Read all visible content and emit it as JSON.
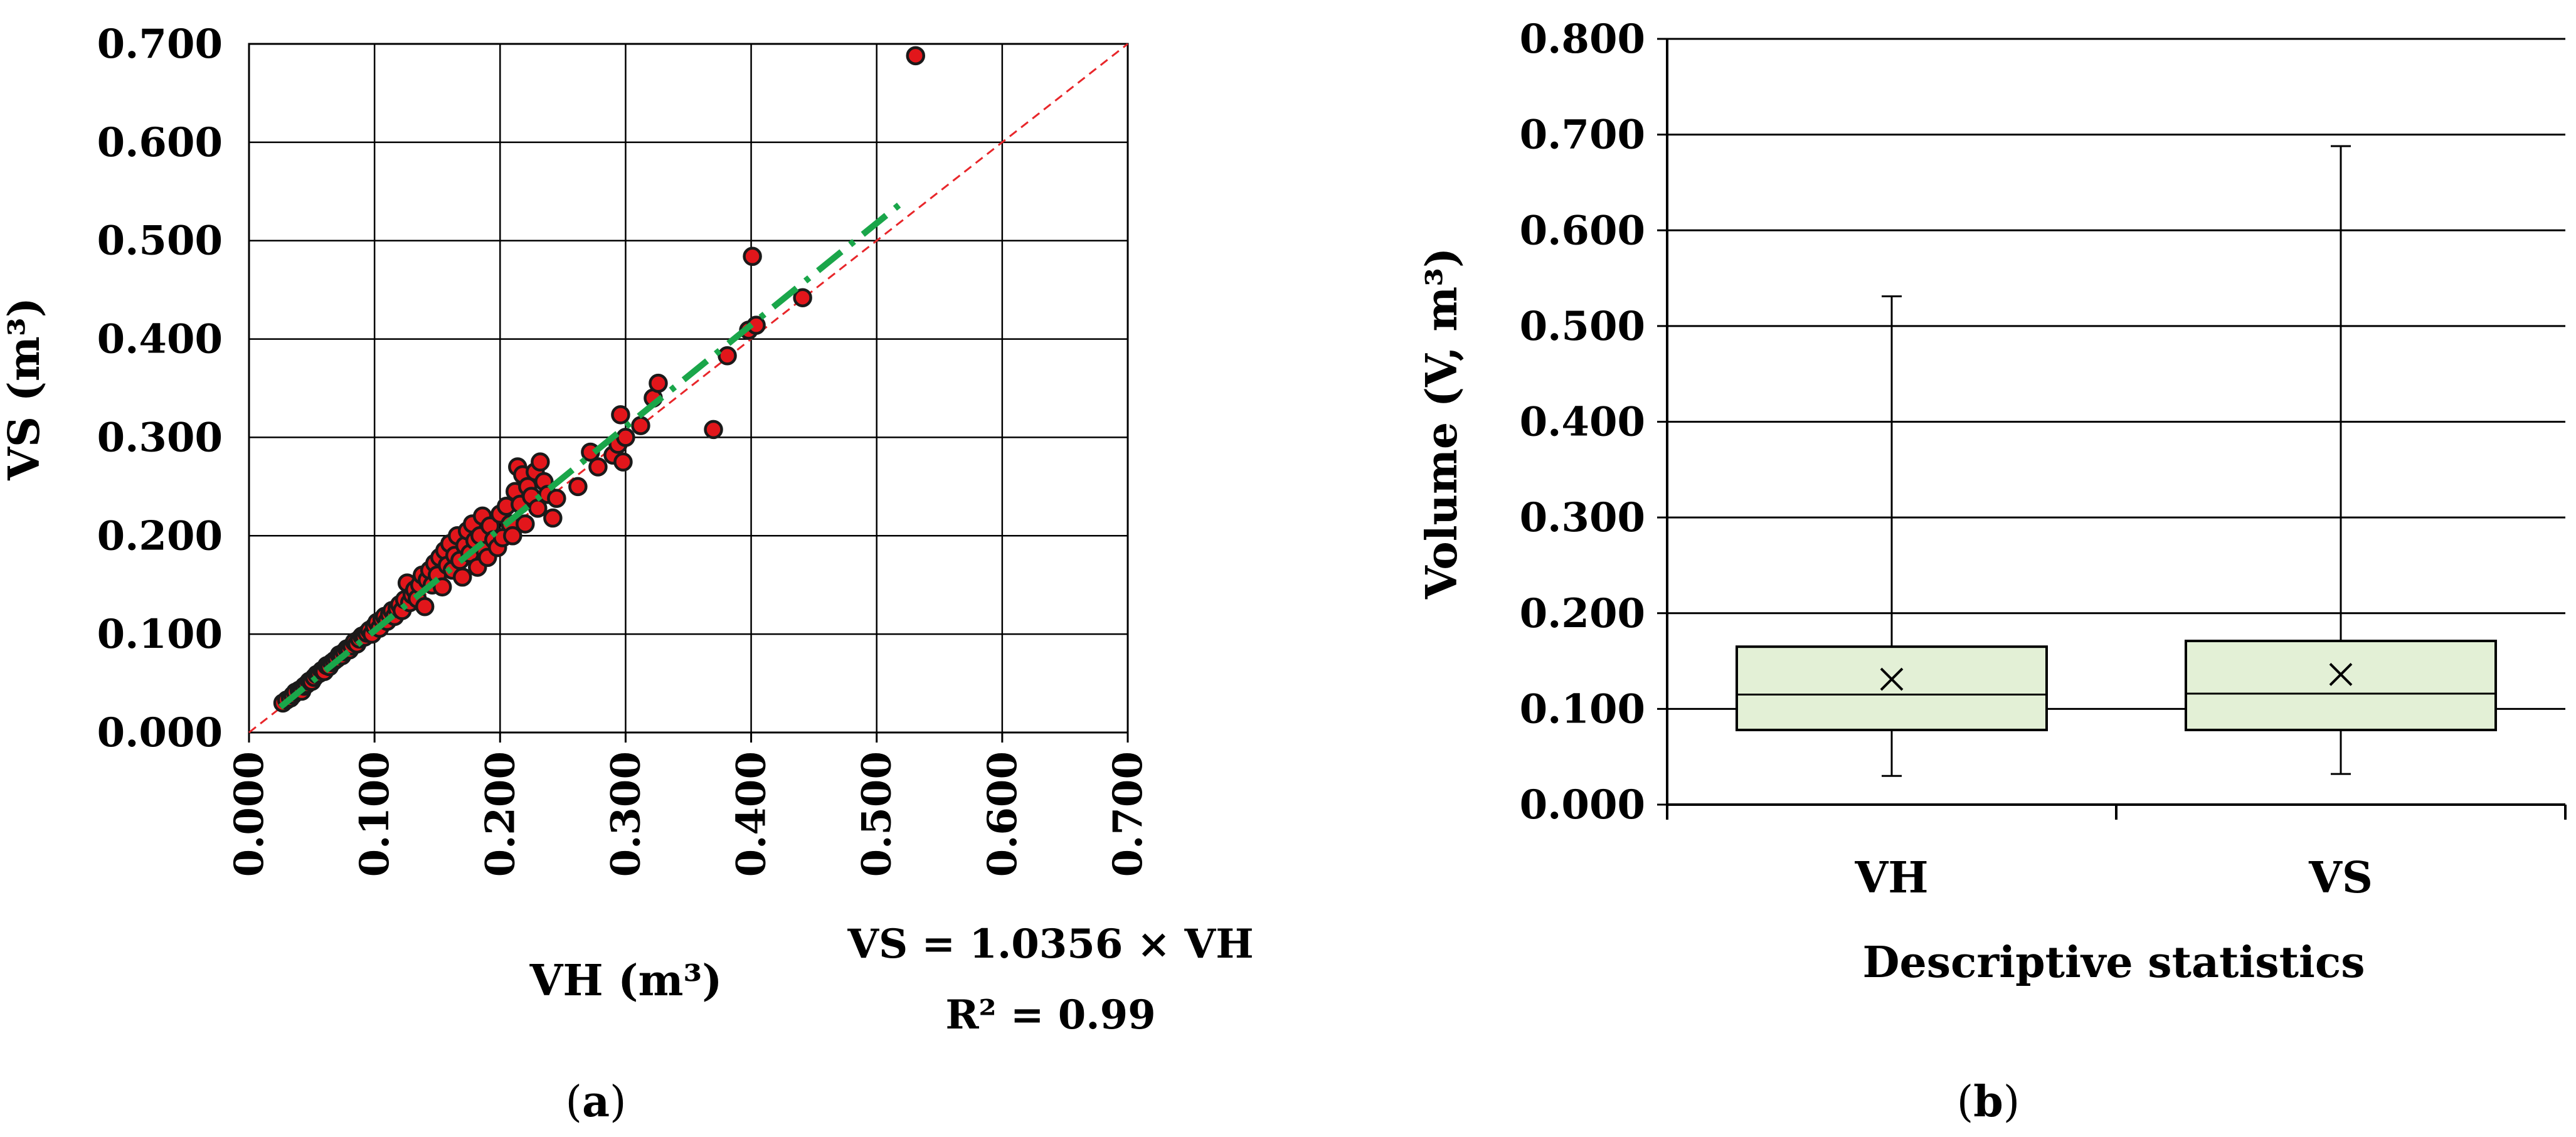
{
  "chart_data": [
    {
      "panel": "(a)",
      "type": "scatter",
      "xlabel": "VH (m³)",
      "ylabel": "VS (m³)",
      "xlim": [
        0.0,
        0.7
      ],
      "ylim": [
        0.0,
        0.7
      ],
      "x_ticks": [
        "0.000",
        "0.100",
        "0.200",
        "0.300",
        "0.400",
        "0.500",
        "0.600",
        "0.700"
      ],
      "y_ticks": [
        "0.000",
        "0.100",
        "0.200",
        "0.300",
        "0.400",
        "0.500",
        "0.600",
        "0.700"
      ],
      "grid": true,
      "equation": "VS = 1.0356 × VH",
      "r_squared": "R² = 0.99",
      "fit_line": {
        "slope": 1.0356,
        "x_range": [
          0.025,
          0.52
        ],
        "color": "#1aa64a",
        "style": "dash-dot"
      },
      "reference_line": {
        "slope": 1.0,
        "x_range": [
          0.0,
          0.7
        ],
        "color": "#e8262a",
        "style": "dashed"
      },
      "marker_color": "#e2161b",
      "points": [
        [
          0.027,
          0.03
        ],
        [
          0.03,
          0.033
        ],
        [
          0.033,
          0.035
        ],
        [
          0.035,
          0.038
        ],
        [
          0.037,
          0.041
        ],
        [
          0.04,
          0.043
        ],
        [
          0.042,
          0.042
        ],
        [
          0.044,
          0.047
        ],
        [
          0.046,
          0.049
        ],
        [
          0.048,
          0.052
        ],
        [
          0.05,
          0.052
        ],
        [
          0.052,
          0.056
        ],
        [
          0.054,
          0.059
        ],
        [
          0.056,
          0.06
        ],
        [
          0.058,
          0.063
        ],
        [
          0.06,
          0.062
        ],
        [
          0.062,
          0.068
        ],
        [
          0.064,
          0.067
        ],
        [
          0.066,
          0.071
        ],
        [
          0.068,
          0.073
        ],
        [
          0.07,
          0.075
        ],
        [
          0.072,
          0.079
        ],
        [
          0.074,
          0.078
        ],
        [
          0.076,
          0.082
        ],
        [
          0.078,
          0.085
        ],
        [
          0.08,
          0.084
        ],
        [
          0.082,
          0.088
        ],
        [
          0.084,
          0.092
        ],
        [
          0.086,
          0.09
        ],
        [
          0.088,
          0.095
        ],
        [
          0.09,
          0.098
        ],
        [
          0.092,
          0.097
        ],
        [
          0.094,
          0.101
        ],
        [
          0.096,
          0.104
        ],
        [
          0.098,
          0.1
        ],
        [
          0.1,
          0.108
        ],
        [
          0.102,
          0.112
        ],
        [
          0.104,
          0.106
        ],
        [
          0.106,
          0.115
        ],
        [
          0.108,
          0.118
        ],
        [
          0.11,
          0.113
        ],
        [
          0.112,
          0.12
        ],
        [
          0.114,
          0.124
        ],
        [
          0.116,
          0.118
        ],
        [
          0.118,
          0.126
        ],
        [
          0.12,
          0.13
        ],
        [
          0.122,
          0.124
        ],
        [
          0.124,
          0.135
        ],
        [
          0.126,
          0.152
        ],
        [
          0.128,
          0.132
        ],
        [
          0.13,
          0.14
        ],
        [
          0.132,
          0.145
        ],
        [
          0.134,
          0.136
        ],
        [
          0.136,
          0.15
        ],
        [
          0.138,
          0.16
        ],
        [
          0.14,
          0.128
        ],
        [
          0.142,
          0.155
        ],
        [
          0.144,
          0.165
        ],
        [
          0.146,
          0.15
        ],
        [
          0.148,
          0.172
        ],
        [
          0.15,
          0.16
        ],
        [
          0.152,
          0.178
        ],
        [
          0.154,
          0.148
        ],
        [
          0.156,
          0.185
        ],
        [
          0.158,
          0.17
        ],
        [
          0.16,
          0.192
        ],
        [
          0.162,
          0.165
        ],
        [
          0.164,
          0.18
        ],
        [
          0.166,
          0.2
        ],
        [
          0.168,
          0.175
        ],
        [
          0.17,
          0.158
        ],
        [
          0.172,
          0.19
        ],
        [
          0.174,
          0.205
        ],
        [
          0.176,
          0.182
        ],
        [
          0.178,
          0.212
        ],
        [
          0.18,
          0.195
        ],
        [
          0.182,
          0.168
        ],
        [
          0.184,
          0.2
        ],
        [
          0.186,
          0.22
        ],
        [
          0.188,
          0.185
        ],
        [
          0.19,
          0.178
        ],
        [
          0.192,
          0.21
        ],
        [
          0.195,
          0.196
        ],
        [
          0.198,
          0.188
        ],
        [
          0.2,
          0.222
        ],
        [
          0.202,
          0.198
        ],
        [
          0.205,
          0.23
        ],
        [
          0.208,
          0.212
        ],
        [
          0.21,
          0.2
        ],
        [
          0.212,
          0.245
        ],
        [
          0.214,
          0.27
        ],
        [
          0.216,
          0.232
        ],
        [
          0.218,
          0.262
        ],
        [
          0.22,
          0.212
        ],
        [
          0.222,
          0.25
        ],
        [
          0.225,
          0.24
        ],
        [
          0.228,
          0.265
        ],
        [
          0.23,
          0.228
        ],
        [
          0.232,
          0.275
        ],
        [
          0.235,
          0.255
        ],
        [
          0.238,
          0.242
        ],
        [
          0.242,
          0.218
        ],
        [
          0.245,
          0.238
        ],
        [
          0.262,
          0.25
        ],
        [
          0.272,
          0.285
        ],
        [
          0.278,
          0.27
        ],
        [
          0.29,
          0.282
        ],
        [
          0.294,
          0.293
        ],
        [
          0.296,
          0.323
        ],
        [
          0.298,
          0.275
        ],
        [
          0.3,
          0.3
        ],
        [
          0.312,
          0.312
        ],
        [
          0.322,
          0.34
        ],
        [
          0.326,
          0.355
        ],
        [
          0.37,
          0.308
        ],
        [
          0.381,
          0.383
        ],
        [
          0.398,
          0.409
        ],
        [
          0.401,
          0.484
        ],
        [
          0.404,
          0.414
        ],
        [
          0.441,
          0.442
        ],
        [
          0.531,
          0.688
        ]
      ]
    },
    {
      "panel": "(b)",
      "type": "box",
      "xlabel": "Descriptive statistics",
      "ylabel": "Volume (V, m³)",
      "ylim": [
        0.0,
        0.8
      ],
      "y_ticks": [
        "0.000",
        "0.100",
        "0.200",
        "0.300",
        "0.400",
        "0.500",
        "0.600",
        "0.700",
        "0.800"
      ],
      "grid": true,
      "box_color": "#e3f0d6",
      "categories": [
        "VH",
        "VS"
      ],
      "boxes": [
        {
          "name": "VH",
          "min": 0.03,
          "q1": 0.078,
          "median": 0.115,
          "q3": 0.165,
          "max": 0.531,
          "mean": 0.131
        },
        {
          "name": "VS",
          "min": 0.032,
          "q1": 0.078,
          "median": 0.116,
          "q3": 0.171,
          "max": 0.688,
          "mean": 0.136
        }
      ]
    }
  ],
  "captions": {
    "a": "a",
    "b": "b"
  }
}
